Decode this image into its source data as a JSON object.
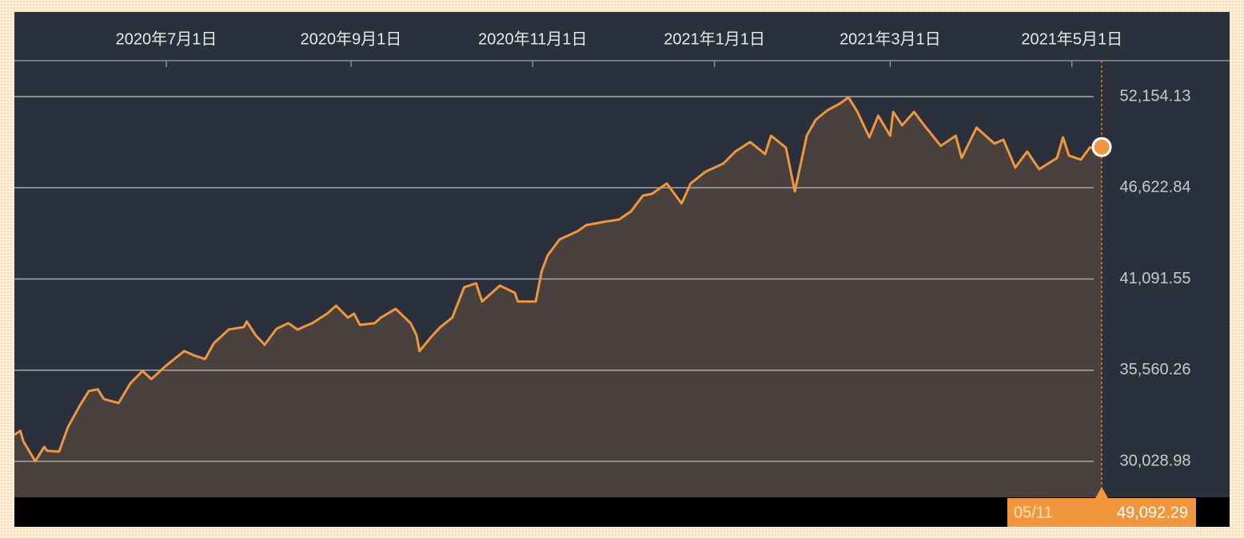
{
  "chart_data": {
    "type": "area",
    "x": [
      "2020-05-11",
      "2020-05-13",
      "2020-05-14",
      "2020-05-18",
      "2020-05-21",
      "2020-05-22",
      "2020-05-26",
      "2020-05-29",
      "2020-06-02",
      "2020-06-05",
      "2020-06-08",
      "2020-06-10",
      "2020-06-15",
      "2020-06-19",
      "2020-06-23",
      "2020-06-26",
      "2020-07-01",
      "2020-07-07",
      "2020-07-10",
      "2020-07-14",
      "2020-07-17",
      "2020-07-22",
      "2020-07-27",
      "2020-07-28",
      "2020-07-31",
      "2020-08-03",
      "2020-08-07",
      "2020-08-11",
      "2020-08-14",
      "2020-08-19",
      "2020-08-24",
      "2020-08-27",
      "2020-08-31",
      "2020-09-02",
      "2020-09-04",
      "2020-09-09",
      "2020-09-11",
      "2020-09-16",
      "2020-09-21",
      "2020-09-23",
      "2020-09-24",
      "2020-09-28",
      "2020-10-01",
      "2020-10-05",
      "2020-10-09",
      "2020-10-13",
      "2020-10-15",
      "2020-10-21",
      "2020-10-26",
      "2020-10-27",
      "2020-11-02",
      "2020-11-04",
      "2020-11-06",
      "2020-11-10",
      "2020-11-16",
      "2020-11-19",
      "2020-11-25",
      "2020-11-30",
      "2020-12-04",
      "2020-12-08",
      "2020-12-11",
      "2020-12-16",
      "2020-12-21",
      "2020-12-24",
      "2020-12-29",
      "2021-01-04",
      "2021-01-08",
      "2021-01-13",
      "2021-01-18",
      "2021-01-20",
      "2021-01-25",
      "2021-01-28",
      "2021-02-01",
      "2021-02-04",
      "2021-02-08",
      "2021-02-12",
      "2021-02-15",
      "2021-02-18",
      "2021-02-22",
      "2021-02-25",
      "2021-03-01",
      "2021-03-02",
      "2021-03-05",
      "2021-03-09",
      "2021-03-12",
      "2021-03-18",
      "2021-03-23",
      "2021-03-25",
      "2021-03-30",
      "2021-04-02",
      "2021-04-05",
      "2021-04-08",
      "2021-04-12",
      "2021-04-16",
      "2021-04-20",
      "2021-04-26",
      "2021-04-28",
      "2021-04-30",
      "2021-05-04",
      "2021-05-07",
      "2021-05-11"
    ],
    "values": [
      31640,
      31880,
      31250,
      30040,
      30910,
      30670,
      30620,
      32120,
      33430,
      34300,
      34400,
      33810,
      33570,
      34780,
      35510,
      35020,
      35850,
      36720,
      36480,
      36230,
      37200,
      38030,
      38170,
      38510,
      37680,
      37100,
      38070,
      38410,
      38020,
      38410,
      38990,
      39470,
      38750,
      38990,
      38310,
      38410,
      38750,
      39280,
      38410,
      37680,
      36720,
      37590,
      38170,
      38750,
      40590,
      40830,
      39720,
      40690,
      40250,
      39720,
      39720,
      41560,
      42520,
      43490,
      43980,
      44360,
      44560,
      44700,
      45190,
      46150,
      46250,
      46880,
      45670,
      46880,
      47600,
      48090,
      48820,
      49400,
      48670,
      49780,
      49060,
      46400,
      49780,
      50750,
      51330,
      51720,
      52100,
      51230,
      49680,
      50990,
      49780,
      51230,
      50410,
      51230,
      50510,
      49160,
      49780,
      48430,
      50270,
      49780,
      49300,
      49540,
      47850,
      48820,
      47750,
      48430,
      49680,
      48580,
      48330,
      49060,
      49092.29
    ],
    "color": "#f0963c",
    "xlim": [
      "2020-05-11",
      "2021-05-11"
    ],
    "xticks": [
      {
        "value": "2020-07-01",
        "label": "2020年7月1日"
      },
      {
        "value": "2020-09-01",
        "label": "2020年9月1日"
      },
      {
        "value": "2020-11-01",
        "label": "2020年11月1日"
      },
      {
        "value": "2021-01-01",
        "label": "2021年1月1日"
      },
      {
        "value": "2021-03-01",
        "label": "2021年3月1日"
      },
      {
        "value": "2021-05-01",
        "label": "2021年5月1日"
      }
    ],
    "ylim": [
      27851,
      54332
    ],
    "yticks": [
      {
        "value": 30028.98,
        "label": "30,028.98"
      },
      {
        "value": 35560.26,
        "label": "35,560.26"
      },
      {
        "value": 41091.55,
        "label": "41,091.55"
      },
      {
        "value": 46622.84,
        "label": "46,622.84"
      },
      {
        "value": 52154.13,
        "label": "52,154.13"
      }
    ],
    "grid": true,
    "annotation": {
      "date": "05/11",
      "value": "49,092.29"
    }
  }
}
